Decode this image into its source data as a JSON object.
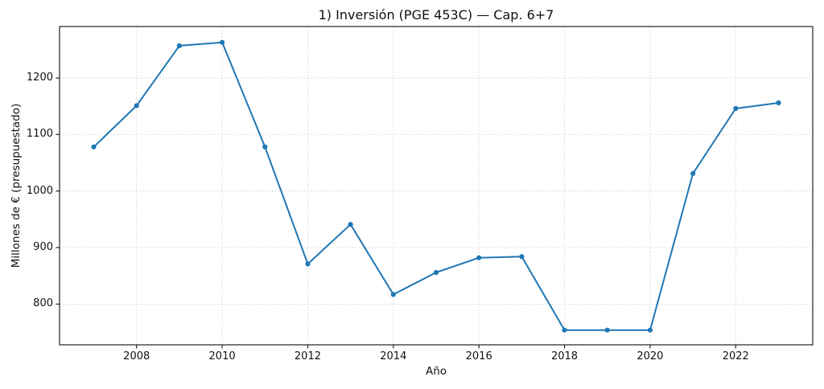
{
  "chart_data": {
    "type": "line",
    "title": "1) Inversión (PGE 453C) — Cap. 6+7",
    "xlabel": "Año",
    "ylabel": "Millones de € (presupuestado)",
    "x": [
      2007,
      2008,
      2009,
      2010,
      2011,
      2012,
      2013,
      2014,
      2015,
      2016,
      2017,
      2018,
      2019,
      2020,
      2021,
      2022,
      2023
    ],
    "values": [
      1078,
      1151,
      1257,
      1263,
      1078,
      871,
      941,
      817,
      856,
      882,
      884,
      754,
      754,
      754,
      1031,
      1146,
      1156
    ],
    "xlim": [
      2006.2,
      2023.8
    ],
    "ylim": [
      728,
      1291
    ],
    "xticks": [
      2008,
      2010,
      2012,
      2014,
      2016,
      2018,
      2020,
      2022
    ],
    "yticks": [
      800,
      900,
      1000,
      1100,
      1200
    ],
    "grid": true,
    "legend": false,
    "colors": {
      "line": "#1f77b4",
      "marker": "#1f77b4",
      "grid": "#c9c9c9",
      "spine": "#222222",
      "text": "#111111",
      "background": "#ffffff"
    }
  }
}
